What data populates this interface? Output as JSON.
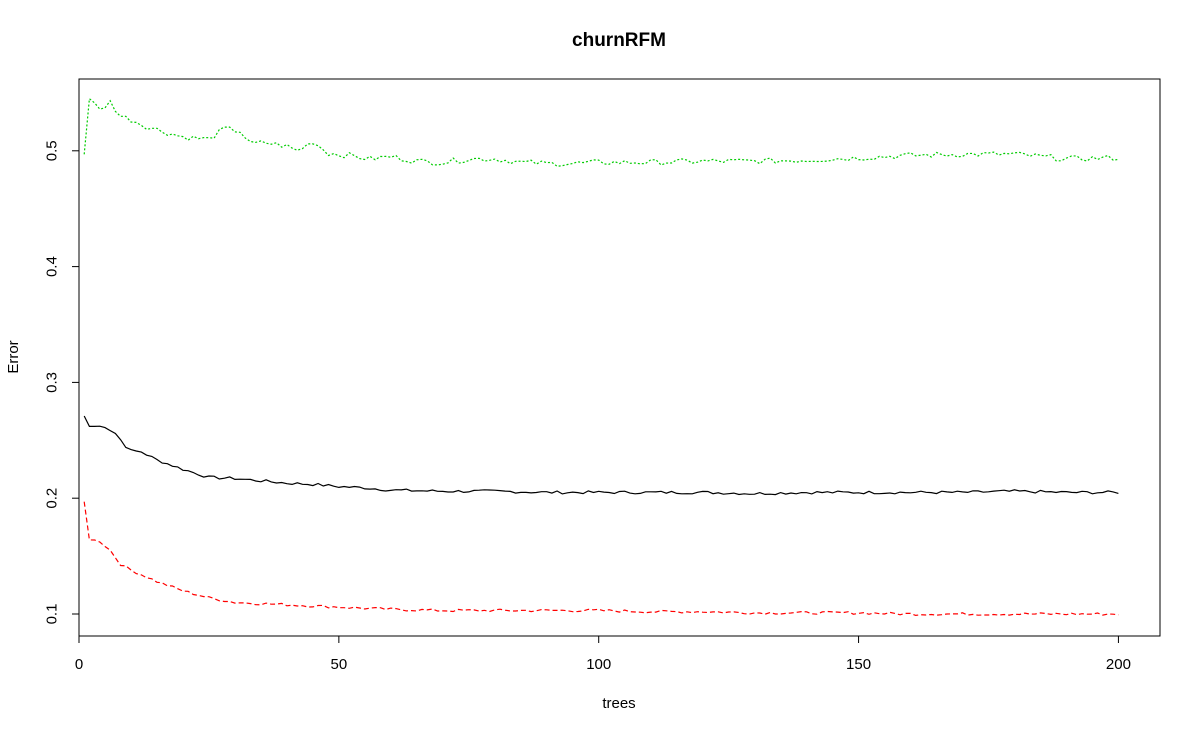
{
  "chart_data": {
    "type": "line",
    "title": "churnRFM",
    "xlabel": "trees",
    "ylabel": "Error",
    "xlim": [
      0,
      208
    ],
    "ylim": [
      0.081,
      0.562
    ],
    "x_ticks": [
      0,
      50,
      100,
      150,
      200
    ],
    "y_ticks": [
      0.1,
      0.2,
      0.3,
      0.4,
      0.5
    ],
    "grid": false,
    "legend": "none",
    "series": [
      {
        "color": "#000000",
        "dash": "solid",
        "points": [
          [
            1,
            0.271
          ],
          [
            2,
            0.262
          ],
          [
            5,
            0.262
          ],
          [
            7,
            0.256
          ],
          [
            9,
            0.245
          ],
          [
            10,
            0.241
          ],
          [
            12,
            0.24
          ],
          [
            15,
            0.233
          ],
          [
            20,
            0.225
          ],
          [
            25,
            0.218
          ],
          [
            30,
            0.217
          ],
          [
            35,
            0.215
          ],
          [
            40,
            0.213
          ],
          [
            45,
            0.212
          ],
          [
            50,
            0.21
          ],
          [
            55,
            0.209
          ],
          [
            60,
            0.207
          ],
          [
            70,
            0.206
          ],
          [
            80,
            0.206
          ],
          [
            90,
            0.205
          ],
          [
            100,
            0.205
          ],
          [
            110,
            0.205
          ],
          [
            120,
            0.205
          ],
          [
            130,
            0.204
          ],
          [
            140,
            0.205
          ],
          [
            150,
            0.205
          ],
          [
            160,
            0.205
          ],
          [
            170,
            0.205
          ],
          [
            180,
            0.206
          ],
          [
            190,
            0.205
          ],
          [
            200,
            0.205
          ]
        ],
        "noise": 0.0013
      },
      {
        "color": "#ff0000",
        "dash": "dashed",
        "points": [
          [
            1,
            0.197
          ],
          [
            2,
            0.164
          ],
          [
            4,
            0.163
          ],
          [
            6,
            0.155
          ],
          [
            8,
            0.143
          ],
          [
            10,
            0.138
          ],
          [
            12,
            0.134
          ],
          [
            15,
            0.128
          ],
          [
            20,
            0.12
          ],
          [
            25,
            0.114
          ],
          [
            30,
            0.11
          ],
          [
            35,
            0.109
          ],
          [
            40,
            0.108
          ],
          [
            45,
            0.107
          ],
          [
            50,
            0.106
          ],
          [
            55,
            0.105
          ],
          [
            60,
            0.104
          ],
          [
            70,
            0.103
          ],
          [
            80,
            0.103
          ],
          [
            90,
            0.103
          ],
          [
            100,
            0.103
          ],
          [
            110,
            0.102
          ],
          [
            120,
            0.102
          ],
          [
            130,
            0.101
          ],
          [
            140,
            0.101
          ],
          [
            150,
            0.101
          ],
          [
            160,
            0.1
          ],
          [
            170,
            0.1
          ],
          [
            180,
            0.1
          ],
          [
            190,
            0.1
          ],
          [
            200,
            0.1
          ]
        ],
        "noise": 0.0012
      },
      {
        "color": "#00cc00",
        "dash": "dotted",
        "points": [
          [
            1,
            0.497
          ],
          [
            2,
            0.545
          ],
          [
            4,
            0.535
          ],
          [
            6,
            0.542
          ],
          [
            8,
            0.53
          ],
          [
            10,
            0.527
          ],
          [
            13,
            0.521
          ],
          [
            16,
            0.517
          ],
          [
            20,
            0.512
          ],
          [
            25,
            0.51
          ],
          [
            28,
            0.519
          ],
          [
            31,
            0.517
          ],
          [
            33,
            0.506
          ],
          [
            36,
            0.507
          ],
          [
            40,
            0.504
          ],
          [
            42,
            0.5
          ],
          [
            45,
            0.508
          ],
          [
            48,
            0.498
          ],
          [
            52,
            0.496
          ],
          [
            56,
            0.493
          ],
          [
            60,
            0.495
          ],
          [
            65,
            0.491
          ],
          [
            70,
            0.49
          ],
          [
            75,
            0.493
          ],
          [
            80,
            0.493
          ],
          [
            85,
            0.49
          ],
          [
            90,
            0.489
          ],
          [
            95,
            0.489
          ],
          [
            100,
            0.49
          ],
          [
            110,
            0.49
          ],
          [
            120,
            0.491
          ],
          [
            130,
            0.491
          ],
          [
            140,
            0.492
          ],
          [
            150,
            0.494
          ],
          [
            160,
            0.496
          ],
          [
            170,
            0.497
          ],
          [
            180,
            0.497
          ],
          [
            190,
            0.493
          ],
          [
            200,
            0.494
          ]
        ],
        "noise": 0.0025
      }
    ]
  }
}
